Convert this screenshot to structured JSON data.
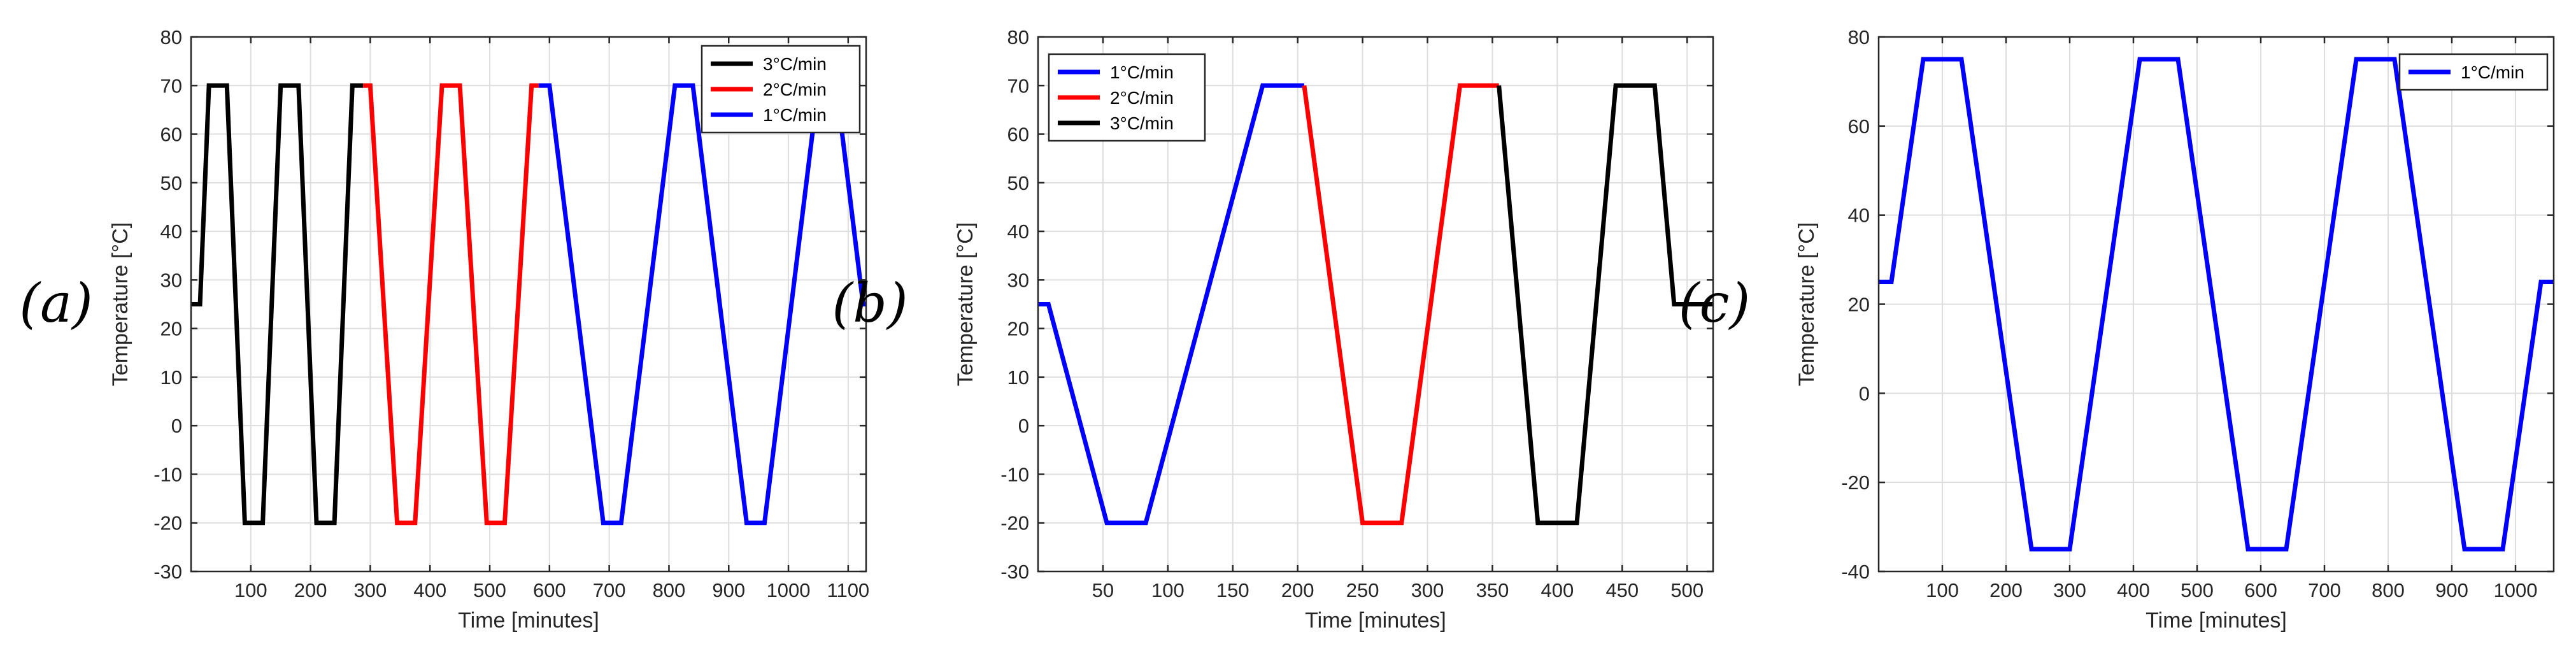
{
  "chart_data": [
    {
      "type": "line",
      "panel_label": "(a)",
      "xlabel": "Time [minutes]",
      "ylabel": "Temperature [°C]",
      "xlim": [
        0,
        1130
      ],
      "ylim": [
        -30,
        80
      ],
      "xticks": [
        100,
        200,
        300,
        400,
        500,
        600,
        700,
        800,
        900,
        1000,
        1100
      ],
      "yticks": [
        -30,
        -20,
        -10,
        0,
        10,
        20,
        30,
        40,
        50,
        60,
        70,
        80
      ],
      "grid": true,
      "legend_position": "top-right",
      "series": [
        {
          "name": "3°C/min",
          "color": "#000000",
          "x": [
            0,
            15,
            30,
            60,
            90,
            120,
            150,
            180,
            210,
            240,
            270,
            288
          ],
          "y": [
            25,
            25,
            70,
            70,
            -20,
            -20,
            70,
            70,
            -20,
            -20,
            70,
            70
          ]
        },
        {
          "name": "2°C/min",
          "color": "#ff0000",
          "x": [
            288,
            300,
            345,
            375,
            420,
            450,
            495,
            525,
            570,
            582
          ],
          "y": [
            70,
            70,
            -20,
            -20,
            70,
            70,
            -20,
            -20,
            70,
            70
          ]
        },
        {
          "name": "1°C/min",
          "color": "#0000ff",
          "x": [
            582,
            600,
            690,
            720,
            810,
            840,
            930,
            960,
            1050,
            1080,
            1125,
            1130
          ],
          "y": [
            70,
            70,
            -20,
            -20,
            70,
            70,
            -20,
            -20,
            70,
            70,
            25,
            25
          ]
        }
      ]
    },
    {
      "type": "line",
      "panel_label": "(b)",
      "xlabel": "Time [minutes]",
      "ylabel": "Temperature [°C]",
      "xlim": [
        0,
        520
      ],
      "ylim": [
        -30,
        80
      ],
      "xticks": [
        50,
        100,
        150,
        200,
        250,
        300,
        350,
        400,
        450,
        500
      ],
      "yticks": [
        -30,
        -20,
        -10,
        0,
        10,
        20,
        30,
        40,
        50,
        60,
        70,
        80
      ],
      "grid": true,
      "legend_position": "top-left",
      "series": [
        {
          "name": "1°C/min",
          "color": "#0000ff",
          "x": [
            0,
            8,
            53,
            83,
            173,
            205
          ],
          "y": [
            25,
            25,
            -20,
            -20,
            70,
            70
          ]
        },
        {
          "name": "2°C/min",
          "color": "#ff0000",
          "x": [
            205,
            250,
            280,
            325,
            355
          ],
          "y": [
            70,
            -20,
            -20,
            70,
            70
          ]
        },
        {
          "name": "3°C/min",
          "color": "#000000",
          "x": [
            355,
            385,
            415,
            445,
            475,
            490,
            520
          ],
          "y": [
            70,
            -20,
            -20,
            70,
            70,
            25,
            25
          ]
        }
      ]
    },
    {
      "type": "line",
      "panel_label": "(c)",
      "xlabel": "Time [minutes]",
      "ylabel": "Temperature [°C]",
      "xlim": [
        0,
        1060
      ],
      "ylim": [
        -40,
        80
      ],
      "xticks": [
        100,
        200,
        300,
        400,
        500,
        600,
        700,
        800,
        900,
        1000
      ],
      "yticks": [
        -40,
        -20,
        0,
        20,
        40,
        60,
        80
      ],
      "grid": true,
      "legend_position": "top-right",
      "series": [
        {
          "name": "1°C/min",
          "color": "#0000ff",
          "x": [
            0,
            20,
            70,
            130,
            240,
            300,
            410,
            470,
            580,
            640,
            750,
            810,
            920,
            980,
            1040,
            1060
          ],
          "y": [
            25,
            25,
            75,
            75,
            -35,
            -35,
            75,
            75,
            -35,
            -35,
            75,
            75,
            -35,
            -35,
            25,
            25
          ]
        }
      ]
    }
  ]
}
